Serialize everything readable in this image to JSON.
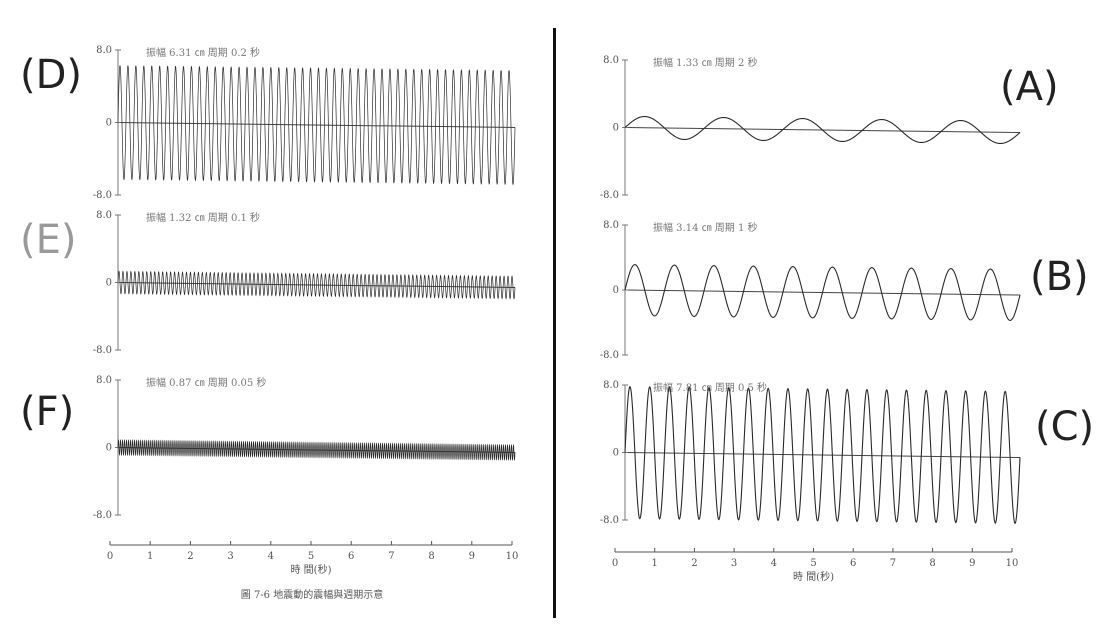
{
  "chart_data": [
    {
      "type": "line",
      "letter": "(D)",
      "header": "振幅 6.31 ㎝    周期 0.2 秒",
      "amplitude": 6.31,
      "period": 0.2,
      "ylim": [
        -8.0,
        8.0
      ],
      "yticks": [
        "8.0",
        "0",
        "-8.0"
      ],
      "xlim": [
        0,
        10
      ]
    },
    {
      "type": "line",
      "letter": "(E)",
      "header": "振幅 1.32 ㎝    周期 0.1 秒",
      "amplitude": 1.32,
      "period": 0.1,
      "ylim": [
        -8.0,
        8.0
      ],
      "yticks": [
        "8.0",
        "0",
        "-8.0"
      ],
      "xlim": [
        0,
        10
      ]
    },
    {
      "type": "line",
      "letter": "(F)",
      "header": "振幅 0.87 ㎝    周期 0.05 秒",
      "amplitude": 0.87,
      "period": 0.05,
      "ylim": [
        -8.0,
        8.0
      ],
      "yticks": [
        "8.0",
        "0",
        "-8.0"
      ],
      "xlim": [
        0,
        10
      ]
    },
    {
      "type": "line",
      "letter": "(A)",
      "header": "振幅 1.33 ㎝    周期 2 秒",
      "amplitude": 1.33,
      "period": 2,
      "ylim": [
        -8.0,
        8.0
      ],
      "yticks": [
        "8.0",
        "0",
        "-8.0"
      ],
      "xlim": [
        0,
        10
      ]
    },
    {
      "type": "line",
      "letter": "(B)",
      "header": "振幅 3.14 ㎝    周期 1 秒",
      "amplitude": 3.14,
      "period": 1,
      "ylim": [
        -8.0,
        8.0
      ],
      "yticks": [
        "8.0",
        "0",
        "-8.0"
      ],
      "xlim": [
        0,
        10
      ]
    },
    {
      "type": "line",
      "letter": "(C)",
      "header": "振幅 7.81 ㎝    周期 0.5 秒",
      "amplitude": 7.81,
      "period": 0.5,
      "ylim": [
        -8.0,
        8.0
      ],
      "yticks": [
        "8.0",
        "0",
        "-8.0"
      ],
      "xlim": [
        0,
        10
      ]
    }
  ],
  "x_axis": {
    "ticks": [
      "0",
      "1",
      "2",
      "3",
      "4",
      "5",
      "6",
      "7",
      "8",
      "9",
      "10"
    ],
    "label": "時 間(秒)"
  },
  "caption": "圖 7-6  地震動的震幅與週期示意"
}
